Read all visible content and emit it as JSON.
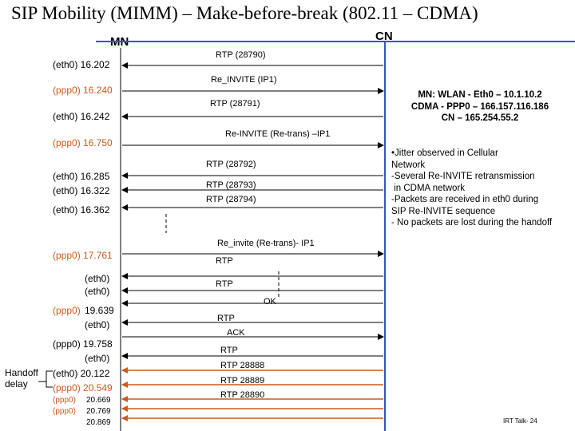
{
  "title": "SIP Mobility (MIMM) – Make-before-break (802.11 – CDMA)",
  "mn_label": "MN",
  "cn_label": "CN",
  "left_labels": [
    {
      "text": "(eth0)  16.202",
      "color": "black"
    },
    {
      "text": "(ppp0)  16.240",
      "color": "orange"
    },
    {
      "text": "(eth0)  16.242",
      "color": "black"
    },
    {
      "text": "(ppp0)  16.750",
      "color": "orange"
    },
    {
      "text": "(eth0)  16.285",
      "color": "black"
    },
    {
      "text": "(eth0)  16.322",
      "color": "black"
    },
    {
      "text": "(eth0)  16.362",
      "color": "black"
    },
    {
      "text": "(ppp0)  17.761",
      "color": "orange"
    },
    {
      "text": "(eth0)",
      "color": "black"
    },
    {
      "text": "(eth0)",
      "color": "black"
    },
    {
      "text": "(ppp0)",
      "color": "orange"
    },
    {
      "text": "19.639",
      "color": "black"
    },
    {
      "text": "(eth0)",
      "color": "black"
    },
    {
      "text": "(ppp0)  19.758",
      "color": "black"
    },
    {
      "text": "(eth0)",
      "color": "black"
    },
    {
      "text": "(eth0)  20.122",
      "color": "black"
    },
    {
      "text": "(ppp0)  20.549",
      "color": "orange"
    },
    {
      "text": "(ppp0)",
      "color": "orange"
    },
    {
      "text": "20.669",
      "color": "black"
    },
    {
      "text": "(ppp0)",
      "color": "orange"
    },
    {
      "text": "20.769",
      "color": "black"
    },
    {
      "text": "20.869",
      "color": "black"
    }
  ],
  "handoff": {
    "line1": "Handoff",
    "line2": "delay"
  },
  "messages": [
    {
      "text": "RTP (28790)",
      "dir": "to_mn",
      "color": "black"
    },
    {
      "text": "Re_INVITE (IP1)",
      "dir": "to_cn",
      "color": "black"
    },
    {
      "text": "RTP (28791)",
      "dir": "to_mn",
      "color": "black"
    },
    {
      "text": "Re-INVITE (Re-trans) –IP1",
      "dir": "to_cn",
      "color": "black"
    },
    {
      "text": "RTP (28792)",
      "dir": "to_mn",
      "color": "black"
    },
    {
      "text": "RTP (28793)",
      "dir": "to_mn",
      "color": "black"
    },
    {
      "text": "RTP (28794)",
      "dir": "to_mn",
      "color": "black"
    },
    {
      "text": "Re_invite (Re-trans)- IP1",
      "dir": "to_cn",
      "color": "black"
    },
    {
      "text": "RTP",
      "dir": "to_mn",
      "color": "black"
    },
    {
      "text": "RTP",
      "dir": "to_mn",
      "color": "black"
    },
    {
      "text": "OK",
      "dir": "to_mn",
      "color": "black"
    },
    {
      "text": "RTP",
      "dir": "to_mn",
      "color": "black"
    },
    {
      "text": "ACK",
      "dir": "to_cn",
      "color": "black"
    },
    {
      "text": "RTP",
      "dir": "to_mn",
      "color": "black"
    },
    {
      "text": "RTP  28888",
      "dir": "to_mn",
      "color": "orange"
    },
    {
      "text": "RTP  28889",
      "dir": "to_mn",
      "color": "orange"
    },
    {
      "text": "RTP  28890",
      "dir": "to_mn",
      "color": "orange"
    },
    {
      "text": "",
      "dir": "to_mn",
      "color": "orange"
    },
    {
      "text": "",
      "dir": "to_mn",
      "color": "orange"
    }
  ],
  "address_note": "MN: WLAN - Eth0 – 10.1.10.2\nCDMA - PPP0 – 166.157.116.186\nCN – 165.254.55.2",
  "observations": "•Jitter observed in Cellular\nNetwork\n-Several Re-INVITE retransmission\n in CDMA network\n-Packets are received in eth0 during\nSIP Re-INVITE sequence\n- No packets are lost during the handoff",
  "footer": "IRT Talk- 24",
  "colors": {
    "orange": "#cc5a1a",
    "blue": "#3355cc",
    "black": "#000000"
  }
}
